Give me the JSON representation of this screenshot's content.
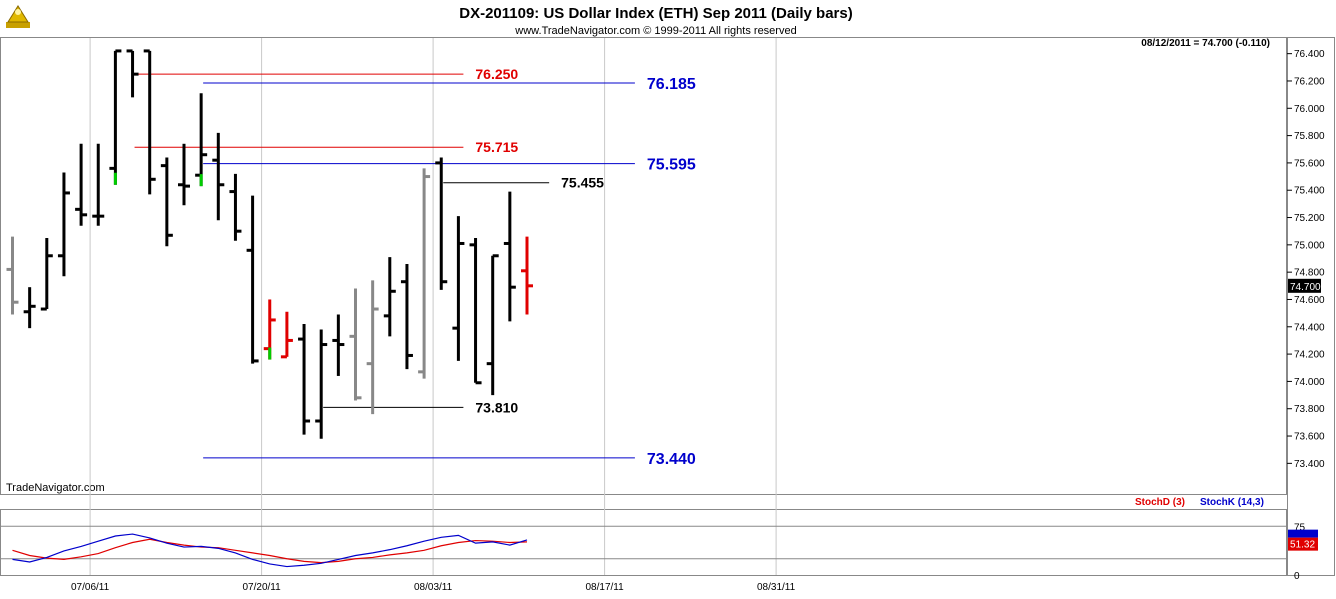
{
  "header": {
    "title": "DX-201109:  US Dollar Index (ETH) Sep 2011  (Daily bars)",
    "copyright": "www.TradeNavigator.com © 1999-2011 All rights reserved",
    "watermark": "TradeNavigator.com",
    "last_quote": "08/12/2011 = 74.700 (-0.110)"
  },
  "chart_data": [
    {
      "type": "ohlc",
      "title": "DX-201109:  US Dollar Index (ETH) Sep 2011  (Daily bars)",
      "ylim": [
        73.3,
        76.5
      ],
      "y_ticks": [
        "76.400",
        "76.200",
        "76.000",
        "75.800",
        "75.600",
        "75.400",
        "75.200",
        "75.000",
        "74.800",
        "74.600",
        "74.400",
        "74.200",
        "74.000",
        "73.800",
        "73.600",
        "73.400"
      ],
      "x_date_labels": [
        {
          "label": "07/06/11",
          "bar_index": 4
        },
        {
          "label": "07/20/11",
          "bar_index": 14
        },
        {
          "label": "08/03/11",
          "bar_index": 24
        },
        {
          "label": "08/17/11",
          "bar_index": 34
        },
        {
          "label": "08/31/11",
          "bar_index": 44
        }
      ],
      "current_price": "74.700",
      "colors": {
        "up": "#000000",
        "down": "#000000",
        "inside": "#888888",
        "key": "#e00000",
        "signal": "#00cc00"
      },
      "bars": [
        {
          "o": 74.82,
          "h": 75.06,
          "l": 74.49,
          "c": 74.58,
          "color": "#888888"
        },
        {
          "o": 74.51,
          "h": 74.69,
          "l": 74.39,
          "c": 74.55,
          "color": "#000000"
        },
        {
          "o": 74.53,
          "h": 75.05,
          "l": 74.53,
          "c": 74.92,
          "color": "#000000"
        },
        {
          "o": 74.92,
          "h": 75.53,
          "l": 74.77,
          "c": 75.38,
          "color": "#000000"
        },
        {
          "o": 75.26,
          "h": 75.74,
          "l": 75.14,
          "c": 75.22,
          "color": "#000000"
        },
        {
          "o": 75.21,
          "h": 75.74,
          "l": 75.14,
          "c": 75.21,
          "color": "#000000"
        },
        {
          "o": 75.56,
          "h": 76.42,
          "l": 75.44,
          "c": 76.42,
          "color": "#000000",
          "tick_color": "#00cc00"
        },
        {
          "o": 76.42,
          "h": 76.42,
          "l": 76.08,
          "c": 76.25,
          "color": "#000000"
        },
        {
          "o": 76.42,
          "h": 76.42,
          "l": 75.37,
          "c": 75.48,
          "color": "#000000"
        },
        {
          "o": 75.58,
          "h": 75.64,
          "l": 74.99,
          "c": 75.07,
          "color": "#000000"
        },
        {
          "o": 75.44,
          "h": 75.74,
          "l": 75.29,
          "c": 75.43,
          "color": "#000000"
        },
        {
          "o": 75.51,
          "h": 76.11,
          "l": 75.43,
          "c": 75.66,
          "color": "#000000",
          "tick_color": "#00cc00"
        },
        {
          "o": 75.62,
          "h": 75.82,
          "l": 75.18,
          "c": 75.44,
          "color": "#000000"
        },
        {
          "o": 75.39,
          "h": 75.52,
          "l": 75.03,
          "c": 75.1,
          "color": "#000000"
        },
        {
          "o": 74.96,
          "h": 75.36,
          "l": 74.13,
          "c": 74.15,
          "color": "#000000"
        },
        {
          "o": 74.24,
          "h": 74.6,
          "l": 74.16,
          "c": 74.45,
          "color": "#e00000",
          "tick_color": "#00cc00"
        },
        {
          "o": 74.18,
          "h": 74.51,
          "l": 74.18,
          "c": 74.3,
          "color": "#e00000"
        },
        {
          "o": 74.31,
          "h": 74.42,
          "l": 73.61,
          "c": 73.71,
          "color": "#000000"
        },
        {
          "o": 73.71,
          "h": 74.38,
          "l": 73.58,
          "c": 74.27,
          "color": "#000000"
        },
        {
          "o": 74.3,
          "h": 74.49,
          "l": 74.04,
          "c": 74.27,
          "color": "#000000"
        },
        {
          "o": 74.33,
          "h": 74.68,
          "l": 73.86,
          "c": 73.88,
          "color": "#888888"
        },
        {
          "o": 74.13,
          "h": 74.74,
          "l": 73.76,
          "c": 74.53,
          "color": "#888888"
        },
        {
          "o": 74.48,
          "h": 74.91,
          "l": 74.33,
          "c": 74.66,
          "color": "#000000"
        },
        {
          "o": 74.73,
          "h": 74.86,
          "l": 74.09,
          "c": 74.19,
          "color": "#000000"
        },
        {
          "o": 74.07,
          "h": 75.56,
          "l": 74.02,
          "c": 75.5,
          "color": "#888888"
        },
        {
          "o": 75.6,
          "h": 75.64,
          "l": 74.67,
          "c": 74.73,
          "color": "#000000"
        },
        {
          "o": 74.39,
          "h": 75.21,
          "l": 74.15,
          "c": 75.01,
          "color": "#000000"
        },
        {
          "o": 75.0,
          "h": 75.05,
          "l": 73.99,
          "c": 73.99,
          "color": "#000000"
        },
        {
          "o": 74.13,
          "h": 74.92,
          "l": 73.9,
          "c": 74.92,
          "color": "#000000"
        },
        {
          "o": 75.01,
          "h": 75.39,
          "l": 74.44,
          "c": 74.69,
          "color": "#000000"
        },
        {
          "o": 74.81,
          "h": 75.06,
          "l": 74.49,
          "c": 74.7,
          "color": "#e00000"
        }
      ],
      "levels": [
        {
          "value": 76.25,
          "label": "76.250",
          "color": "#e00000",
          "from_bar": 7,
          "to_bar": 26
        },
        {
          "value": 76.185,
          "label": "76.185",
          "color": "#0000cc",
          "from_bar": 11,
          "to_bar": 36
        },
        {
          "value": 75.715,
          "label": "75.715",
          "color": "#e00000",
          "from_bar": 7,
          "to_bar": 26
        },
        {
          "value": 75.595,
          "label": "75.595",
          "color": "#0000cc",
          "from_bar": 11,
          "to_bar": 36
        },
        {
          "value": 75.455,
          "label": "75.455",
          "color": "#000000",
          "from_bar": 25,
          "to_bar": 31
        },
        {
          "value": 73.81,
          "label": "73.810",
          "color": "#000000",
          "from_bar": 18,
          "to_bar": 26
        },
        {
          "value": 73.44,
          "label": "73.440",
          "color": "#0000cc",
          "from_bar": 11,
          "to_bar": 36
        }
      ]
    },
    {
      "type": "line",
      "title": "",
      "legend": [
        "StochD (3)",
        "StochK (14,3)"
      ],
      "ylim": [
        0,
        100
      ],
      "y_ticks": [
        "75",
        "0"
      ],
      "reference_lines": [
        75,
        25
      ],
      "current_value": "51.32",
      "series": [
        {
          "name": "StochD (3)",
          "color": "#e00000",
          "values": [
            38,
            30,
            26,
            24,
            28,
            33,
            42,
            50,
            55,
            50,
            46,
            43,
            42,
            38,
            34,
            30,
            25,
            21,
            19,
            21,
            25,
            27,
            31,
            34,
            38,
            45,
            50,
            53,
            52,
            50,
            51
          ]
        },
        {
          "name": "StochK (14,3)",
          "color": "#0000cc",
          "values": [
            24,
            20,
            27,
            37,
            44,
            52,
            60,
            63,
            57,
            49,
            43,
            44,
            41,
            34,
            24,
            17,
            13,
            15,
            18,
            24,
            30,
            34,
            39,
            45,
            52,
            58,
            61,
            49,
            51,
            46,
            54
          ]
        }
      ]
    }
  ]
}
